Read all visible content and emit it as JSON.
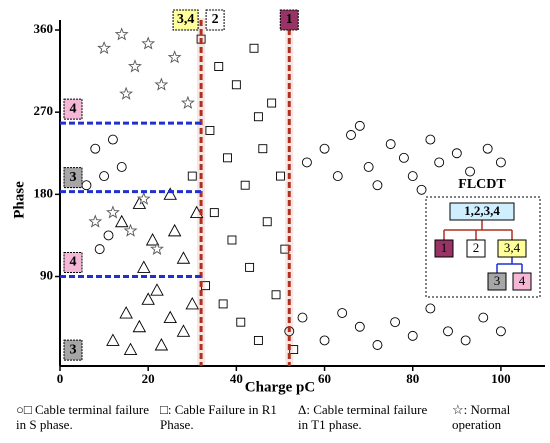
{
  "chart_data": {
    "type": "scatter",
    "x_label": "Charge pC",
    "y_label": "Phase",
    "xlim": [
      0,
      110
    ],
    "ylim": [
      -8,
      360
    ],
    "xticks": [
      0,
      20,
      40,
      60,
      80,
      100
    ],
    "yticks": [
      90,
      180,
      270,
      360
    ],
    "series": [
      {
        "name": "○□ Cable terminal failure in S phase.",
        "marker": "circle",
        "color": "#000000",
        "x": [
          56,
          60,
          63,
          66,
          70,
          72,
          75,
          78,
          80,
          84,
          86,
          90,
          93,
          97,
          100,
          68,
          82,
          52,
          55,
          60,
          64,
          68,
          72,
          76,
          80,
          84,
          88,
          92,
          96,
          100,
          8,
          10,
          12,
          9,
          11,
          14,
          6
        ],
        "values": [
          215,
          230,
          200,
          245,
          210,
          190,
          235,
          220,
          200,
          240,
          215,
          225,
          205,
          230,
          215,
          255,
          185,
          30,
          45,
          20,
          50,
          35,
          15,
          40,
          25,
          55,
          30,
          20,
          45,
          30,
          230,
          200,
          240,
          120,
          135,
          210,
          190
        ]
      },
      {
        "name": "□: Cable Failure in R1 Phase.",
        "marker": "square",
        "color": "#000000",
        "x": [
          32,
          36,
          40,
          44,
          48,
          34,
          38,
          42,
          46,
          50,
          35,
          39,
          43,
          47,
          51,
          33,
          37,
          41,
          45,
          49,
          53,
          30,
          45
        ],
        "values": [
          350,
          320,
          300,
          340,
          280,
          250,
          220,
          190,
          230,
          200,
          160,
          130,
          100,
          150,
          120,
          80,
          60,
          40,
          20,
          70,
          10,
          200,
          265
        ]
      },
      {
        "name": "Δ: Cable terminal failure in T1 phase.",
        "marker": "triangle",
        "color": "#000000",
        "x": [
          12,
          15,
          18,
          20,
          23,
          25,
          28,
          30,
          16,
          22,
          14,
          18,
          21,
          25,
          28,
          31,
          19,
          26
        ],
        "values": [
          20,
          50,
          35,
          65,
          15,
          45,
          30,
          60,
          10,
          75,
          150,
          170,
          130,
          180,
          110,
          160,
          100,
          140
        ]
      },
      {
        "name": "☆: Normal operation",
        "marker": "star",
        "color": "#555555",
        "x": [
          10,
          14,
          17,
          20,
          23,
          26,
          29,
          15,
          12,
          16,
          19,
          22,
          8
        ],
        "values": [
          340,
          355,
          320,
          345,
          300,
          330,
          280,
          290,
          160,
          140,
          175,
          120,
          150
        ]
      }
    ],
    "vlines": [
      {
        "x": 32,
        "color": "#b03020",
        "labels": [
          {
            "text": "3,4",
            "color": "#ffff99"
          },
          {
            "text": "2",
            "color": "#ffffff"
          }
        ]
      },
      {
        "x": 52,
        "color": "#b03020",
        "labels": [
          {
            "text": "1",
            "color": "#993366"
          }
        ]
      }
    ],
    "hlines": [
      {
        "y": 258,
        "color": "#2030d0",
        "label": {
          "text": "4",
          "color": "#f4b8d6"
        }
      },
      {
        "y": 183,
        "color": "#2030d0",
        "label": {
          "text": "3",
          "color": "#a6a6a6"
        }
      },
      {
        "y": 90,
        "color": "#2030d0",
        "label": {
          "text": "4",
          "color": "#f4b8d6"
        }
      }
    ],
    "corner_label": {
      "y": 5,
      "text": "3",
      "color": "#a6a6a6"
    },
    "tree": {
      "title": "FLCDT",
      "root": "1,2,3,4",
      "children": [
        "1",
        "2",
        "3,4"
      ],
      "leaves": [
        "3",
        "4"
      ]
    }
  }
}
